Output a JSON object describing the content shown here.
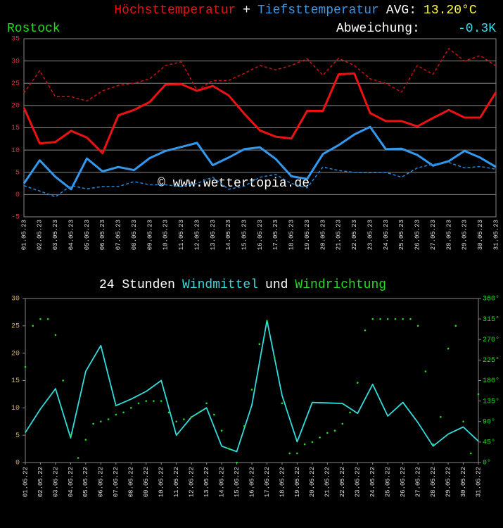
{
  "chart_data": [
    {
      "type": "line",
      "joiner": "+",
      "joiner_color": "#ffffff",
      "avg_label": "AVG:",
      "avg_label_color": "#ffffff",
      "avg_value": "13.20°C",
      "avg_value_color": "#ffff33",
      "location": "Rostock",
      "location_color": "#22dd22",
      "deviation_label": "Abweichung:",
      "deviation_label_color": "#ffffff",
      "deviation_value": "-0.3K",
      "deviation_value_color": "#33ddee",
      "watermark": "© www.wettertopia.de",
      "categories": [
        "01.05.23",
        "02.05.23",
        "03.05.23",
        "04.05.23",
        "05.05.23",
        "06.05.23",
        "07.05.23",
        "08.05.23",
        "09.05.23",
        "10.05.23",
        "11.05.23",
        "12.05.23",
        "13.05.23",
        "14.05.23",
        "15.05.23",
        "16.05.23",
        "17.05.23",
        "18.05.23",
        "19.05.23",
        "20.05.23",
        "21.05.23",
        "22.05.23",
        "23.05.23",
        "24.05.23",
        "25.05.23",
        "26.05.23",
        "27.05.23",
        "28.05.23",
        "29.05.23",
        "30.05.23",
        "31.05.23"
      ],
      "series": [
        {
          "name": "Höchsttemperatur",
          "color": "#ee1111",
          "width": 3,
          "dashed": false,
          "values": [
            19.5,
            11.5,
            11.8,
            14.3,
            12.8,
            9.3,
            17.8,
            19.0,
            20.8,
            24.7,
            24.8,
            23.3,
            24.4,
            22.3,
            18.2,
            14.4,
            13.0,
            12.6,
            18.8,
            18.8,
            27.0,
            27.2,
            18.3,
            16.5,
            16.5,
            15.3,
            17.2,
            19.0,
            17.3,
            17.3,
            23.0
          ]
        },
        {
          "color": "#cc1111",
          "width": 1.5,
          "dashed": true,
          "values": [
            22.8,
            27.8,
            22.0,
            22.0,
            21.0,
            23.3,
            24.5,
            25.0,
            26.0,
            29.0,
            29.8,
            23.4,
            25.6,
            25.6,
            27.2,
            29.0,
            28.0,
            29.0,
            30.5,
            26.8,
            30.6,
            29.0,
            26.0,
            25.0,
            23.0,
            29.0,
            27.0,
            32.8,
            30.0,
            31.2,
            28.9
          ]
        },
        {
          "name": "Tiefsttemperatur",
          "color": "#3399ee",
          "width": 3,
          "dashed": false,
          "values": [
            2.5,
            7.7,
            4.0,
            1.2,
            8.1,
            5.2,
            6.2,
            5.5,
            8.2,
            9.8,
            10.7,
            11.6,
            6.6,
            8.3,
            10.2,
            10.6,
            8.0,
            4.1,
            3.5,
            9.1,
            11.1,
            13.5,
            15.2,
            10.2,
            10.3,
            8.9,
            6.5,
            7.5,
            9.8,
            8.3,
            6.2
          ]
        },
        {
          "color": "#2288dd",
          "width": 1.5,
          "dashed": true,
          "values": [
            2.0,
            0.8,
            -0.5,
            2.0,
            1.3,
            1.8,
            1.8,
            2.9,
            2.2,
            2.2,
            1.8,
            2.5,
            3.9,
            1.2,
            1.9,
            3.9,
            4.5,
            2.5,
            1.5,
            6.2,
            5.4,
            5.0,
            4.9,
            5.0,
            3.9,
            6.0,
            6.8,
            7.2,
            6.0,
            6.3,
            5.7
          ]
        }
      ],
      "ylim": [
        -5,
        35
      ],
      "yticks": [
        -5,
        0,
        5,
        10,
        15,
        20,
        25,
        30,
        35
      ],
      "ytick_color": "#dd3333",
      "grid": true
    },
    {
      "type": "line",
      "title_prefix": "24 Stunden",
      "title_prefix_color": "#ffffff",
      "joiner": "und",
      "joiner_color": "#ffffff",
      "categories": [
        "01.05.22",
        "02.05.22",
        "03.05.22",
        "04.05.22",
        "05.05.22",
        "06.05.22",
        "07.05.22",
        "08.05.22",
        "09.05.22",
        "10.05.22",
        "11.05.22",
        "12.05.22",
        "13.05.22",
        "14.05.22",
        "15.05.22",
        "16.05.22",
        "17.05.22",
        "18.05.22",
        "19.05.22",
        "20.05.22",
        "21.05.22",
        "22.05.22",
        "23.05.22",
        "24.05.22",
        "25.05.22",
        "26.05.22",
        "27.05.22",
        "28.05.22",
        "29.05.22",
        "30.05.22",
        "31.05.22"
      ],
      "series": [
        {
          "name": "Windmittel",
          "color": "#33dddd",
          "values": [
            5.5,
            9.8,
            13.5,
            4.5,
            16.7,
            21.4,
            10.4,
            11.6,
            13.0,
            15.0,
            5.0,
            8.3,
            10.0,
            3.0,
            2.0,
            10.5,
            26.0,
            12.3,
            3.8,
            11.0,
            10.9,
            10.8,
            9.0,
            14.3,
            8.5,
            11.0,
            7.3,
            3.0,
            5.2,
            6.5,
            3.9
          ]
        },
        {
          "name": "Windrichtung",
          "color": "#22dd22",
          "type": "scatter",
          "axis": "y2",
          "x": [
            1,
            1.5,
            2,
            2.5,
            3,
            3.5,
            4,
            4.5,
            5,
            5.5,
            6,
            6.5,
            7,
            7.5,
            8,
            8.5,
            9,
            9.5,
            10,
            10.5,
            11,
            11.5,
            12,
            12.5,
            13,
            13.5,
            14,
            14.5,
            15,
            15.5,
            16,
            16.5,
            17,
            17.5,
            18,
            18.5,
            19,
            19.5,
            20,
            20.5,
            21,
            21.5,
            22,
            22.5,
            23,
            23.5,
            24,
            24.5,
            25,
            25.5,
            26,
            26.5,
            27,
            27.5,
            28,
            28.5,
            29,
            29.5,
            30,
            30.5,
            31
          ],
          "values": [
            210,
            300,
            315,
            315,
            280,
            180,
            60,
            10,
            50,
            85,
            90,
            95,
            105,
            110,
            120,
            130,
            135,
            135,
            135,
            110,
            90,
            95,
            100,
            110,
            130,
            105,
            70,
            30,
            0,
            80,
            160,
            260,
            310,
            230,
            130,
            20,
            20,
            40,
            45,
            55,
            65,
            70,
            85,
            110,
            175,
            290,
            315,
            315,
            315,
            315,
            315,
            315,
            300,
            200,
            40,
            100,
            250,
            300,
            90,
            20,
            150
          ]
        }
      ],
      "xlim": [
        1,
        31
      ],
      "ylim": [
        0,
        30
      ],
      "yticks": [
        0,
        5,
        10,
        15,
        20,
        25,
        30
      ],
      "ytick_color": "#d4b060",
      "y2lim": [
        0,
        360
      ],
      "y2ticks": [
        {
          "value": 0,
          "label": "0°"
        },
        {
          "value": 45,
          "label": "45°"
        },
        {
          "value": 90,
          "label": "90°"
        },
        {
          "value": 135,
          "label": "135°"
        },
        {
          "value": 180,
          "label": "180°"
        },
        {
          "value": 225,
          "label": "225°"
        },
        {
          "value": 270,
          "label": "270°"
        },
        {
          "value": 315,
          "label": "315°"
        },
        {
          "value": 360,
          "label": "360°"
        }
      ],
      "y2tick_color": "#22dd22",
      "grid": false
    }
  ]
}
